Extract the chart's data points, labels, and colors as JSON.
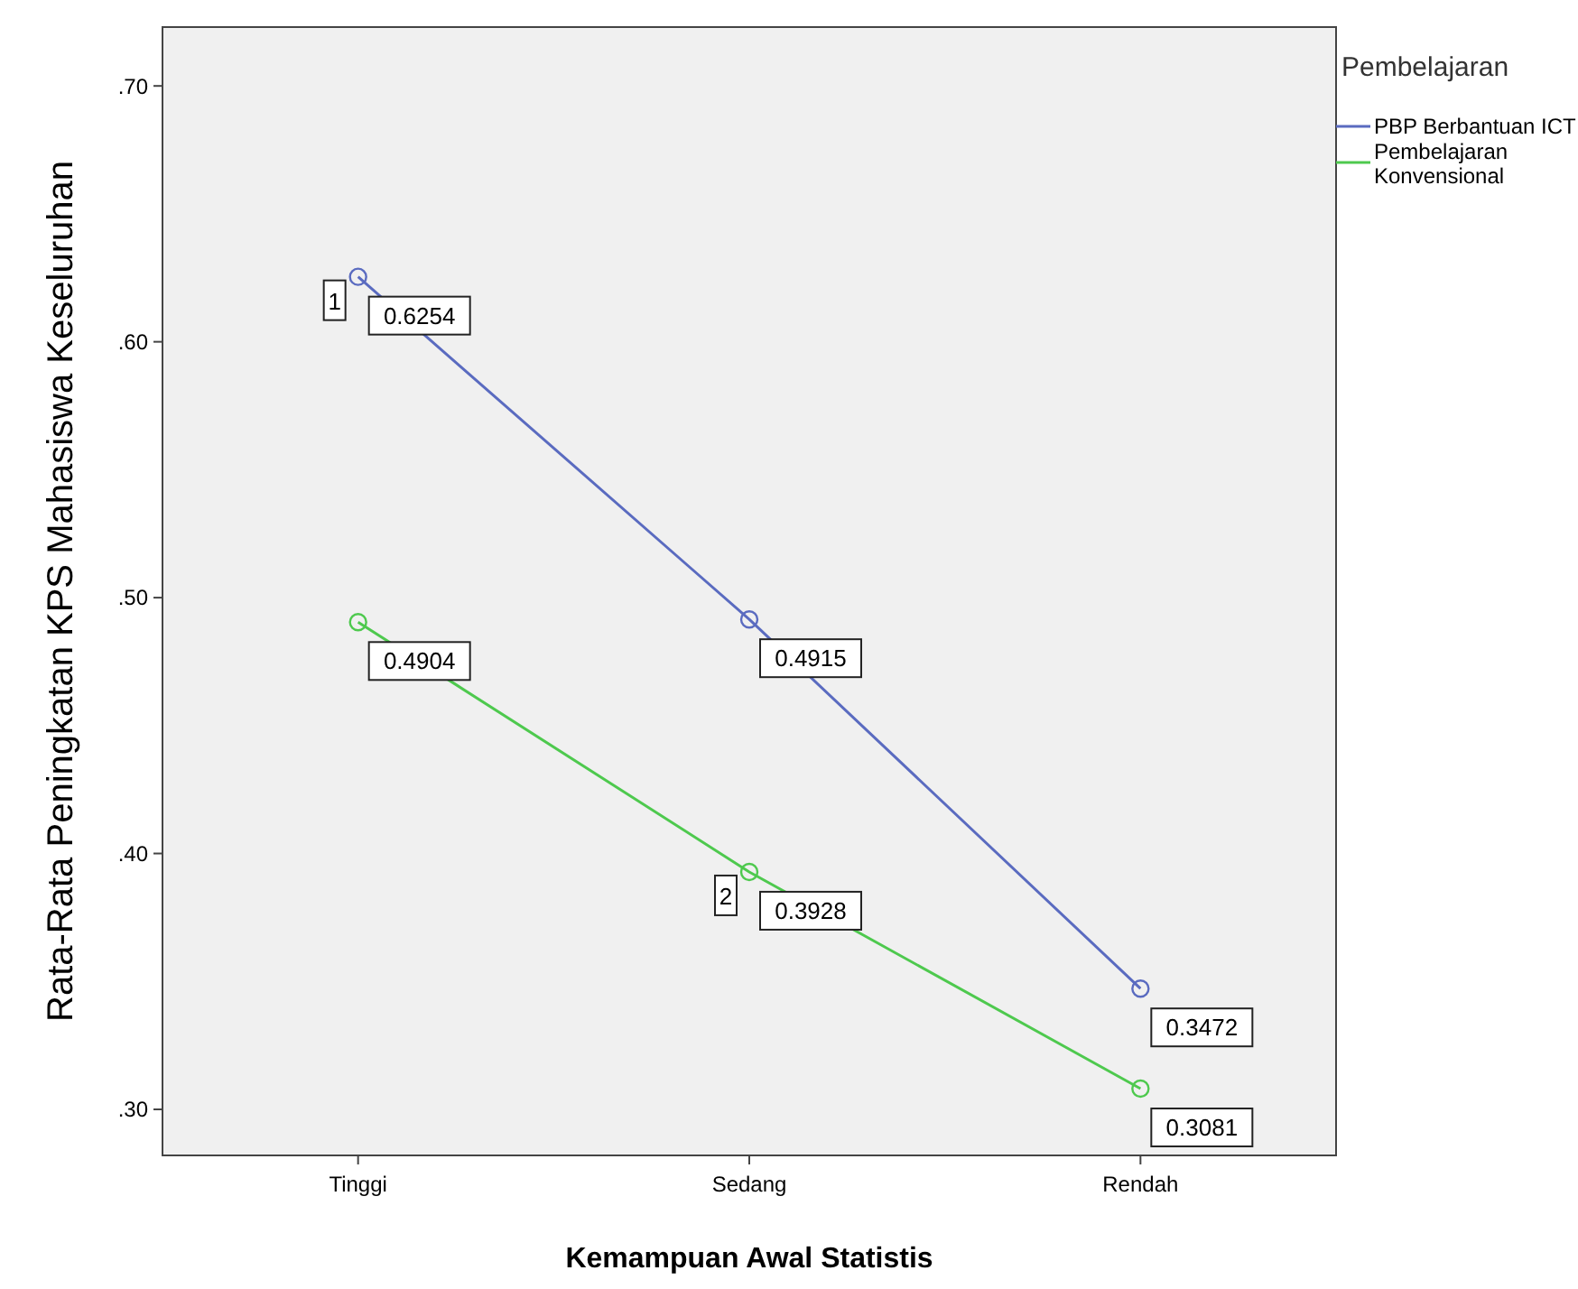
{
  "chart_data": {
    "type": "line",
    "xlabel": "Kemampuan Awal Statistis",
    "ylabel": "Rata-Rata Peningkatan KPS Mahasiswa Keseluruhan",
    "legend_title": "Pembelajaran",
    "categories": [
      "Tinggi",
      "Sedang",
      "Rendah"
    ],
    "series": [
      {
        "name": "PBP Berbantuan ICT",
        "color": "#5a6bc0",
        "values": [
          0.6254,
          0.4915,
          0.3472
        ]
      },
      {
        "name": "Pembelajaran Konvensional",
        "color": "#4ec94e",
        "values": [
          0.4904,
          0.3928,
          0.3081
        ]
      }
    ],
    "ylim": [
      0.282,
      0.723
    ],
    "yticks": [
      {
        "value": 0.3,
        "label": ".30"
      },
      {
        "value": 0.4,
        "label": ".40"
      },
      {
        "value": 0.5,
        "label": ".50"
      },
      {
        "value": 0.6,
        "label": ".60"
      },
      {
        "value": 0.7,
        "label": ".70"
      }
    ],
    "data_labels": true,
    "marker": "circle",
    "legend": "right",
    "grid": false,
    "annotations": [
      {
        "text": "1",
        "x": "Tinggi",
        "y": 0.6254
      },
      {
        "text": "2",
        "x": "Sedang",
        "y": 0.3928
      }
    ]
  }
}
